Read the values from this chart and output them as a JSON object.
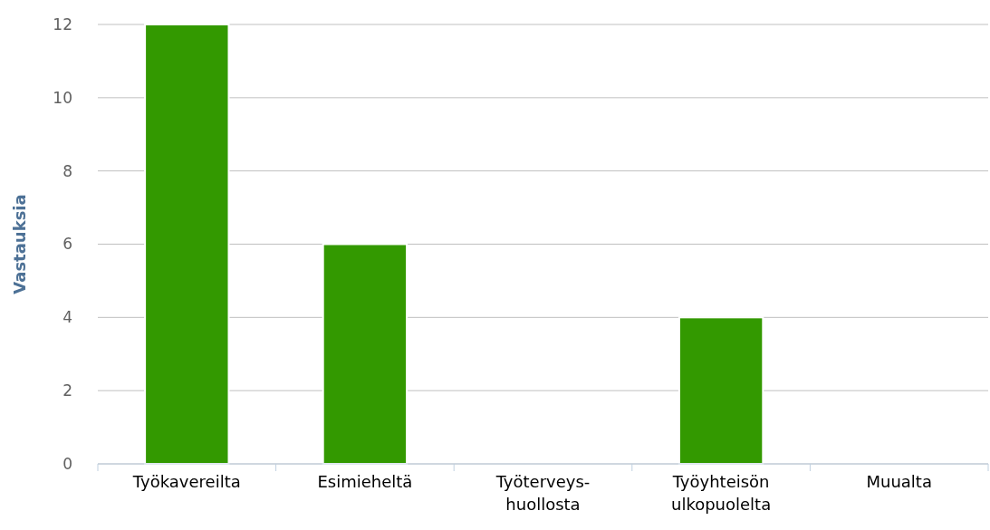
{
  "chart_data": {
    "type": "bar",
    "ylabel": "Vastauksia",
    "categories": [
      "Työkavereilta",
      "Esimieheltä",
      "Työterveys-\nhuollosta",
      "Työyhteisön\nulkopuolelta",
      "Muualta"
    ],
    "values": [
      12,
      6,
      0,
      4,
      0
    ],
    "color": "#339900",
    "ylim": [
      0,
      12
    ],
    "yticks": [
      0,
      2,
      4,
      6,
      8,
      10,
      12
    ],
    "grid": "y"
  }
}
